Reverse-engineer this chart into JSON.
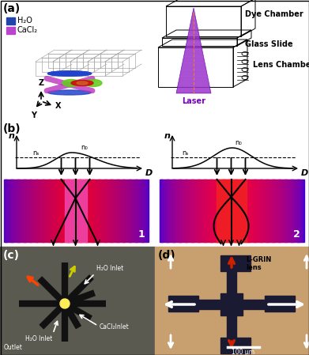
{
  "panel_a_label": "(a)",
  "panel_b_label": "(b)",
  "panel_c_label": "(c)",
  "panel_d_label": "(d)",
  "legend_h2o": "H₂O",
  "legend_cacl2": "CaCl₂",
  "legend_h2o_color": "#2244aa",
  "legend_cacl2_color": "#bb44cc",
  "dye_chamber_label": "Dye Chamber",
  "glass_slide_label": "Glass Slide",
  "lens_chamber_label": "Lens Chamber",
  "laser_label": "Laser",
  "n0_label": "n₀",
  "ns_label": "nₛ",
  "label1": "1",
  "label2": "2",
  "h2o_inlet": "H₂O Inlet",
  "cacl2_inlet": "CaCl₂Inlet",
  "h2o_inlet2": "H₂O Inlet",
  "outlet": "Outlet",
  "lgrin_lens": "L-GRIN\nlens",
  "scale_bar": "100 μm",
  "bg_c_color": "#5a5a50",
  "bg_d_color": "#c8a070",
  "laser_color": "#9933cc",
  "cone_color": "#8822bb"
}
